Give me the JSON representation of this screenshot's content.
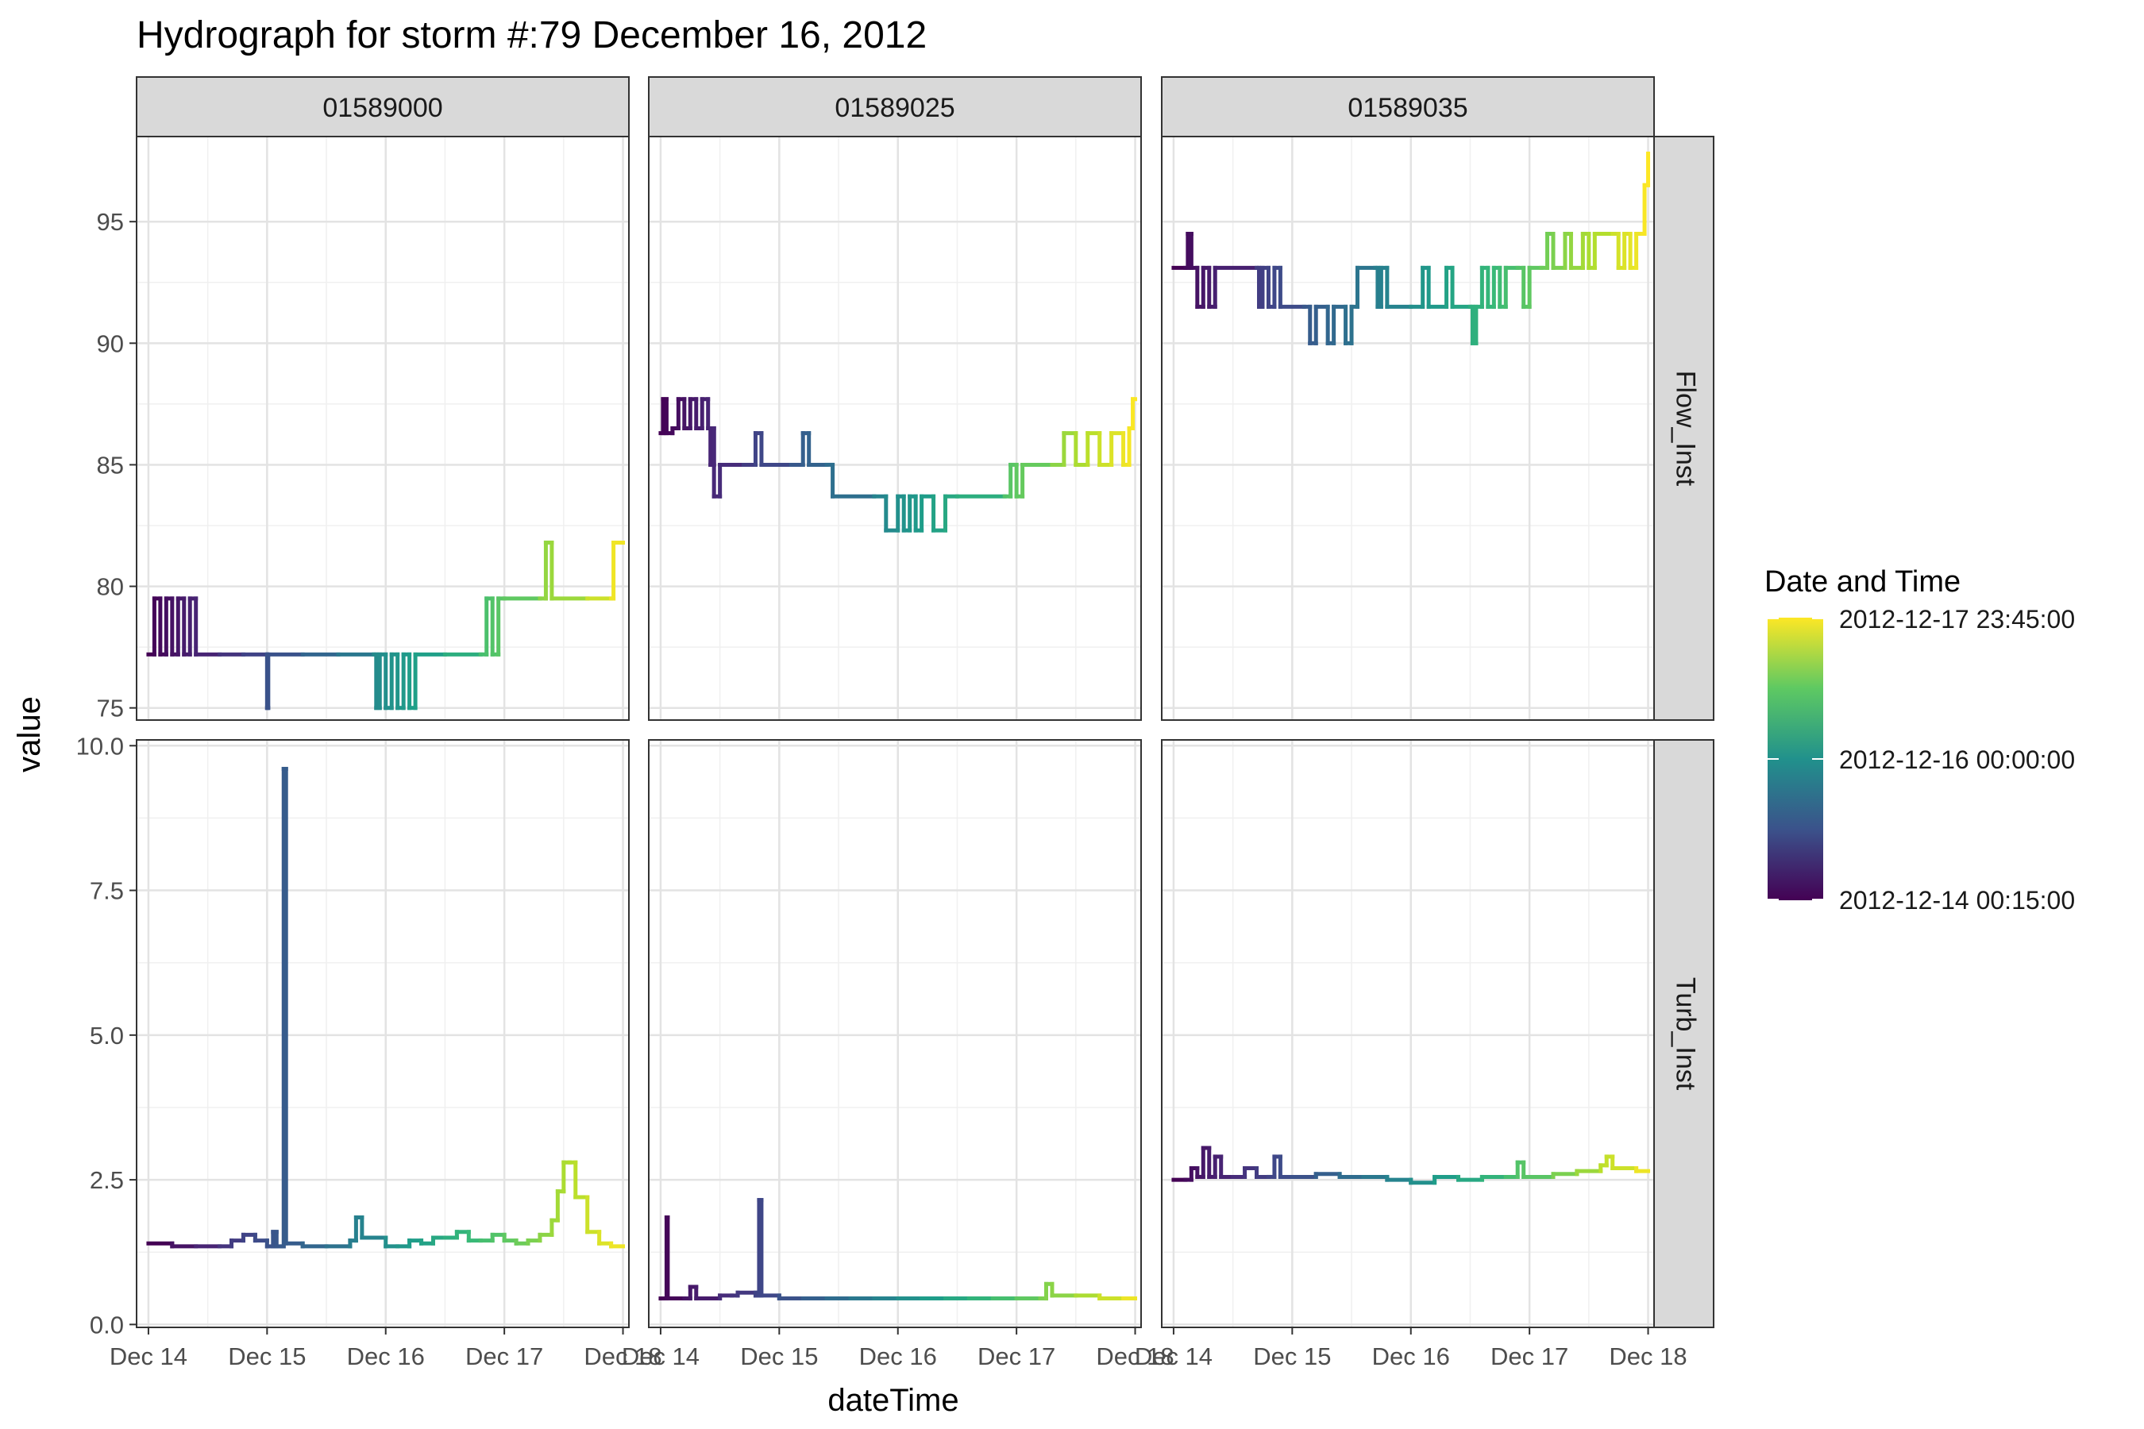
{
  "chart_data": {
    "type": "line",
    "title": "Hydrograph for storm #:79   December 16, 2012",
    "xlabel": "dateTime",
    "ylabel": "value",
    "grid": true,
    "x_ticks": [
      "Dec 14",
      "Dec 15",
      "Dec 16",
      "Dec 17",
      "Dec 18"
    ],
    "x_range_days": [
      13.9,
      18.05
    ],
    "facet_columns": [
      "01589000",
      "01589025",
      "01589035"
    ],
    "facet_rows": [
      {
        "name": "Flow_Inst",
        "ylim": [
          74.5,
          98.5
        ],
        "ticks": [
          75,
          80,
          85,
          90,
          95
        ],
        "tick_labels": [
          "75",
          "80",
          "85",
          "90",
          "95"
        ]
      },
      {
        "name": "Turb_Inst",
        "ylim": [
          -0.05,
          10.1
        ],
        "ticks": [
          0,
          2.5,
          5,
          7.5,
          10
        ],
        "tick_labels": [
          "0.0",
          "2.5",
          "5.0",
          "7.5",
          "10.0"
        ]
      }
    ],
    "legend": {
      "title": "Date and Time",
      "position": "right",
      "colormap": "viridis",
      "labels": [
        "2012-12-17 23:45:00",
        "2012-12-16 00:00:00",
        "2012-12-14 00:15:00"
      ]
    },
    "series": [
      {
        "site": "01589000",
        "parameter": "Flow_Inst",
        "points": [
          [
            14.0,
            77.2
          ],
          [
            14.05,
            79.5
          ],
          [
            14.1,
            77.2
          ],
          [
            14.15,
            79.5
          ],
          [
            14.2,
            77.2
          ],
          [
            14.25,
            79.5
          ],
          [
            14.3,
            77.2
          ],
          [
            14.35,
            79.5
          ],
          [
            14.4,
            77.2
          ],
          [
            14.6,
            77.2
          ],
          [
            14.8,
            77.2
          ],
          [
            15.0,
            77.2
          ],
          [
            15.0,
            75.0
          ],
          [
            15.01,
            77.2
          ],
          [
            15.3,
            77.2
          ],
          [
            15.6,
            77.2
          ],
          [
            15.9,
            77.2
          ],
          [
            15.92,
            75.0
          ],
          [
            15.95,
            77.2
          ],
          [
            16.0,
            75.0
          ],
          [
            16.05,
            77.2
          ],
          [
            16.1,
            75.0
          ],
          [
            16.15,
            77.2
          ],
          [
            16.2,
            75.0
          ],
          [
            16.25,
            77.2
          ],
          [
            16.5,
            77.2
          ],
          [
            16.8,
            77.2
          ],
          [
            16.85,
            79.5
          ],
          [
            16.9,
            77.2
          ],
          [
            16.95,
            79.5
          ],
          [
            17.0,
            79.5
          ],
          [
            17.3,
            79.5
          ],
          [
            17.35,
            81.8
          ],
          [
            17.4,
            79.5
          ],
          [
            17.7,
            79.5
          ],
          [
            17.9,
            79.5
          ],
          [
            17.92,
            81.8
          ],
          [
            18.0,
            81.8
          ]
        ]
      },
      {
        "site": "01589025",
        "parameter": "Flow_Inst",
        "points": [
          [
            14.0,
            86.3
          ],
          [
            14.02,
            87.7
          ],
          [
            14.05,
            86.3
          ],
          [
            14.1,
            86.5
          ],
          [
            14.15,
            87.7
          ],
          [
            14.2,
            86.5
          ],
          [
            14.25,
            87.7
          ],
          [
            14.3,
            86.5
          ],
          [
            14.35,
            87.7
          ],
          [
            14.4,
            86.5
          ],
          [
            14.42,
            85.0
          ],
          [
            14.45,
            86.5
          ],
          [
            14.45,
            83.7
          ],
          [
            14.5,
            85.0
          ],
          [
            14.7,
            85.0
          ],
          [
            14.8,
            86.3
          ],
          [
            14.85,
            85.0
          ],
          [
            15.1,
            85.0
          ],
          [
            15.2,
            86.3
          ],
          [
            15.25,
            85.0
          ],
          [
            15.4,
            85.0
          ],
          [
            15.45,
            83.7
          ],
          [
            15.8,
            83.7
          ],
          [
            15.9,
            82.3
          ],
          [
            16.0,
            83.7
          ],
          [
            16.05,
            82.3
          ],
          [
            16.1,
            83.7
          ],
          [
            16.15,
            82.3
          ],
          [
            16.2,
            83.7
          ],
          [
            16.3,
            82.3
          ],
          [
            16.4,
            83.7
          ],
          [
            16.5,
            83.7
          ],
          [
            16.9,
            83.7
          ],
          [
            16.95,
            85.0
          ],
          [
            17.0,
            83.7
          ],
          [
            17.05,
            85.0
          ],
          [
            17.3,
            85.0
          ],
          [
            17.4,
            86.3
          ],
          [
            17.5,
            85.0
          ],
          [
            17.6,
            86.3
          ],
          [
            17.7,
            85.0
          ],
          [
            17.8,
            86.3
          ],
          [
            17.9,
            85.0
          ],
          [
            17.95,
            86.5
          ],
          [
            17.98,
            87.7
          ],
          [
            18.0,
            87.7
          ]
        ]
      },
      {
        "site": "01589035",
        "parameter": "Flow_Inst",
        "points": [
          [
            14.0,
            93.1
          ],
          [
            14.1,
            93.1
          ],
          [
            14.12,
            94.5
          ],
          [
            14.15,
            93.1
          ],
          [
            14.2,
            91.5
          ],
          [
            14.25,
            93.1
          ],
          [
            14.3,
            91.5
          ],
          [
            14.35,
            93.1
          ],
          [
            14.7,
            93.1
          ],
          [
            14.72,
            91.5
          ],
          [
            14.75,
            93.1
          ],
          [
            14.8,
            91.5
          ],
          [
            14.85,
            93.1
          ],
          [
            14.9,
            91.5
          ],
          [
            15.1,
            91.5
          ],
          [
            15.15,
            90.0
          ],
          [
            15.2,
            91.5
          ],
          [
            15.3,
            90.0
          ],
          [
            15.35,
            91.5
          ],
          [
            15.45,
            90.0
          ],
          [
            15.5,
            91.5
          ],
          [
            15.55,
            93.1
          ],
          [
            15.7,
            93.1
          ],
          [
            15.72,
            91.5
          ],
          [
            15.75,
            93.1
          ],
          [
            15.8,
            91.5
          ],
          [
            16.0,
            91.5
          ],
          [
            16.1,
            93.1
          ],
          [
            16.15,
            91.5
          ],
          [
            16.3,
            93.1
          ],
          [
            16.35,
            91.5
          ],
          [
            16.5,
            91.5
          ],
          [
            16.52,
            90.0
          ],
          [
            16.55,
            91.5
          ],
          [
            16.6,
            93.1
          ],
          [
            16.65,
            91.5
          ],
          [
            16.7,
            93.1
          ],
          [
            16.75,
            91.5
          ],
          [
            16.8,
            93.1
          ],
          [
            16.9,
            93.1
          ],
          [
            16.95,
            91.5
          ],
          [
            17.0,
            93.1
          ],
          [
            17.1,
            93.1
          ],
          [
            17.15,
            94.5
          ],
          [
            17.2,
            93.1
          ],
          [
            17.3,
            94.5
          ],
          [
            17.35,
            93.1
          ],
          [
            17.45,
            94.5
          ],
          [
            17.5,
            93.1
          ],
          [
            17.55,
            94.5
          ],
          [
            17.7,
            94.5
          ],
          [
            17.75,
            93.1
          ],
          [
            17.8,
            94.5
          ],
          [
            17.85,
            93.1
          ],
          [
            17.9,
            94.5
          ],
          [
            17.95,
            94.5
          ],
          [
            17.97,
            96.5
          ],
          [
            18.0,
            97.8
          ]
        ]
      },
      {
        "site": "01589000",
        "parameter": "Turb_Inst",
        "points": [
          [
            14.0,
            1.4
          ],
          [
            14.2,
            1.35
          ],
          [
            14.4,
            1.35
          ],
          [
            14.6,
            1.35
          ],
          [
            14.7,
            1.45
          ],
          [
            14.8,
            1.55
          ],
          [
            14.9,
            1.45
          ],
          [
            15.0,
            1.35
          ],
          [
            15.05,
            1.6
          ],
          [
            15.08,
            1.35
          ],
          [
            15.12,
            1.35
          ],
          [
            15.14,
            9.6
          ],
          [
            15.16,
            1.4
          ],
          [
            15.3,
            1.35
          ],
          [
            15.5,
            1.35
          ],
          [
            15.7,
            1.45
          ],
          [
            15.75,
            1.85
          ],
          [
            15.8,
            1.5
          ],
          [
            16.0,
            1.35
          ],
          [
            16.1,
            1.35
          ],
          [
            16.2,
            1.45
          ],
          [
            16.3,
            1.4
          ],
          [
            16.4,
            1.5
          ],
          [
            16.5,
            1.5
          ],
          [
            16.6,
            1.6
          ],
          [
            16.7,
            1.45
          ],
          [
            16.8,
            1.45
          ],
          [
            16.9,
            1.55
          ],
          [
            17.0,
            1.45
          ],
          [
            17.1,
            1.4
          ],
          [
            17.2,
            1.45
          ],
          [
            17.3,
            1.55
          ],
          [
            17.4,
            1.8
          ],
          [
            17.45,
            2.3
          ],
          [
            17.5,
            2.8
          ],
          [
            17.55,
            2.8
          ],
          [
            17.6,
            2.2
          ],
          [
            17.7,
            1.6
          ],
          [
            17.8,
            1.4
          ],
          [
            17.9,
            1.35
          ],
          [
            18.0,
            1.35
          ]
        ]
      },
      {
        "site": "01589025",
        "parameter": "Turb_Inst",
        "points": [
          [
            14.0,
            0.45
          ],
          [
            14.05,
            1.85
          ],
          [
            14.06,
            0.45
          ],
          [
            14.2,
            0.45
          ],
          [
            14.25,
            0.65
          ],
          [
            14.3,
            0.45
          ],
          [
            14.5,
            0.5
          ],
          [
            14.6,
            0.5
          ],
          [
            14.65,
            0.55
          ],
          [
            14.8,
            0.5
          ],
          [
            14.83,
            2.15
          ],
          [
            14.85,
            0.5
          ],
          [
            15.0,
            0.45
          ],
          [
            15.2,
            0.45
          ],
          [
            15.4,
            0.45
          ],
          [
            15.6,
            0.45
          ],
          [
            15.8,
            0.45
          ],
          [
            16.0,
            0.45
          ],
          [
            16.2,
            0.45
          ],
          [
            16.4,
            0.45
          ],
          [
            16.6,
            0.45
          ],
          [
            16.8,
            0.45
          ],
          [
            17.0,
            0.45
          ],
          [
            17.2,
            0.45
          ],
          [
            17.25,
            0.7
          ],
          [
            17.3,
            0.5
          ],
          [
            17.5,
            0.5
          ],
          [
            17.7,
            0.45
          ],
          [
            17.9,
            0.45
          ],
          [
            18.0,
            0.45
          ]
        ]
      },
      {
        "site": "01589035",
        "parameter": "Turb_Inst",
        "points": [
          [
            14.0,
            2.5
          ],
          [
            14.1,
            2.5
          ],
          [
            14.15,
            2.7
          ],
          [
            14.2,
            2.55
          ],
          [
            14.25,
            3.05
          ],
          [
            14.3,
            2.55
          ],
          [
            14.35,
            2.9
          ],
          [
            14.4,
            2.55
          ],
          [
            14.5,
            2.55
          ],
          [
            14.6,
            2.7
          ],
          [
            14.7,
            2.55
          ],
          [
            14.8,
            2.55
          ],
          [
            14.85,
            2.9
          ],
          [
            14.9,
            2.55
          ],
          [
            15.0,
            2.55
          ],
          [
            15.2,
            2.6
          ],
          [
            15.4,
            2.55
          ],
          [
            15.6,
            2.55
          ],
          [
            15.8,
            2.5
          ],
          [
            16.0,
            2.45
          ],
          [
            16.2,
            2.55
          ],
          [
            16.4,
            2.5
          ],
          [
            16.6,
            2.55
          ],
          [
            16.8,
            2.55
          ],
          [
            16.9,
            2.8
          ],
          [
            16.95,
            2.55
          ],
          [
            17.2,
            2.6
          ],
          [
            17.4,
            2.65
          ],
          [
            17.6,
            2.75
          ],
          [
            17.65,
            2.9
          ],
          [
            17.7,
            2.7
          ],
          [
            17.9,
            2.65
          ],
          [
            18.0,
            2.65
          ]
        ]
      }
    ]
  }
}
